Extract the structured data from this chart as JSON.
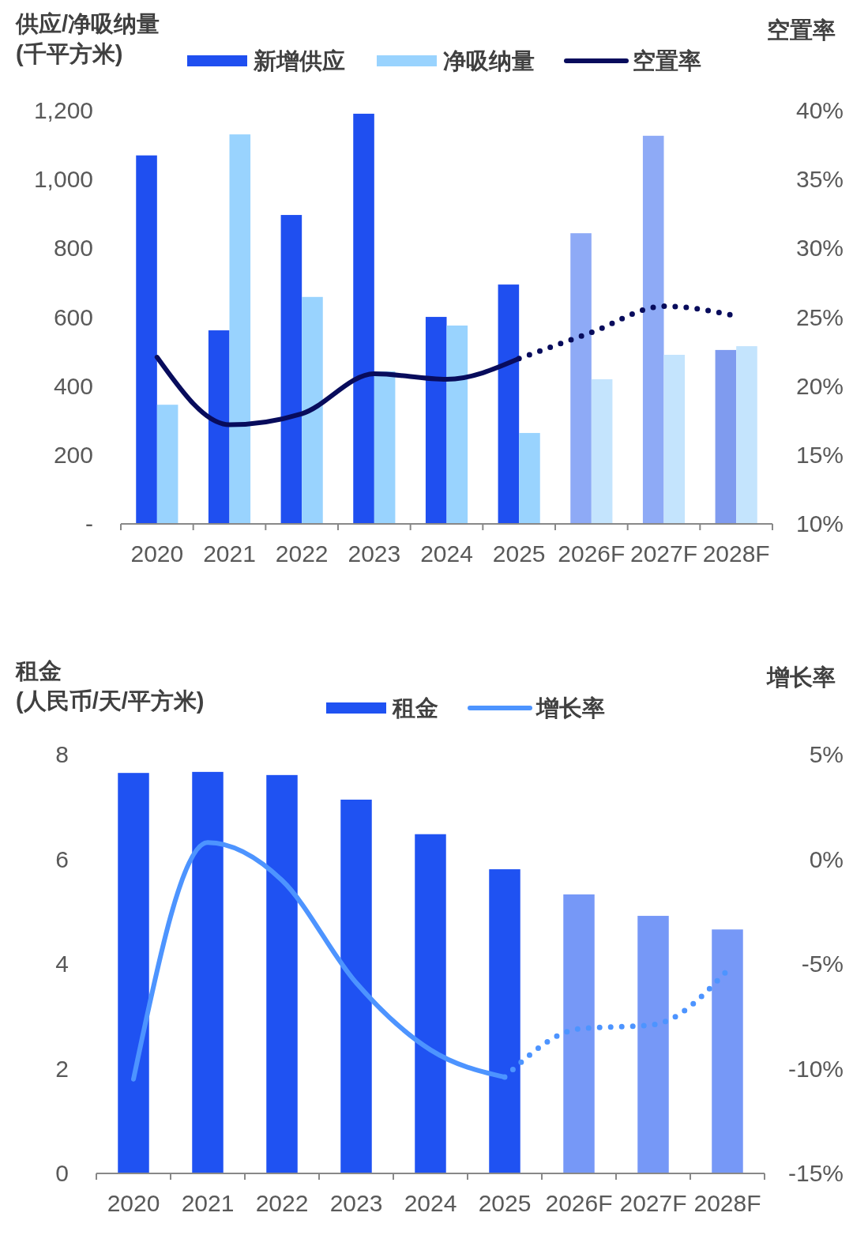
{
  "chart_data": [
    {
      "type": "bar",
      "ylabel": "供应/净吸纳量\n(千平方米)",
      "y2label": "空置率",
      "categories": [
        "2020",
        "2021",
        "2022",
        "2023",
        "2024",
        "2025",
        "2026F",
        "2027F",
        "2028F"
      ],
      "legend": "top",
      "series": [
        {
          "name": "新增供应",
          "color": "#1f4ff0",
          "colors": [
            "#1f4ff0",
            "#1f4ff0",
            "#1f4ff0",
            "#1f4ff0",
            "#1f4ff0",
            "#1f4ff0",
            "#8eaaf6",
            "#8eaaf6",
            "#7f9bef"
          ],
          "values": [
            1070,
            562,
            897,
            1191,
            601,
            695,
            844,
            1127,
            505
          ]
        },
        {
          "name": "净吸纳量",
          "color": "#99d3fe",
          "colors": [
            "#99d3fe",
            "#99d3fe",
            "#99d3fe",
            "#99d3fe",
            "#99d3fe",
            "#99d3fe",
            "#c4e4fd",
            "#c4e4fd",
            "#c4e4fd"
          ],
          "values": [
            346,
            1131,
            659,
            443,
            576,
            264,
            420,
            491,
            516
          ]
        },
        {
          "name": "空置率",
          "type": "line",
          "axis": "y2",
          "color": "#080c5c",
          "line_style": "solid",
          "values": [
            22.1,
            17.2,
            18.0,
            20.9,
            20.5,
            22.0,
            null,
            null,
            null
          ]
        },
        {
          "type": "line",
          "axis": "y2",
          "color": "#080c5c",
          "line_style": "dotted",
          "values": [
            null,
            null,
            null,
            null,
            null,
            22.0,
            23.9,
            25.8,
            25.1
          ]
        }
      ],
      "ylim": [
        0,
        1200
      ],
      "yticks": [
        {
          "value": 0,
          "label": "-"
        },
        {
          "value": 200,
          "label": "200"
        },
        {
          "value": 400,
          "label": "400"
        },
        {
          "value": 600,
          "label": "600"
        },
        {
          "value": 800,
          "label": "800"
        },
        {
          "value": 1000,
          "label": "1,000"
        },
        {
          "value": 1200,
          "label": "1,200"
        }
      ],
      "y2lim": [
        10,
        40
      ],
      "y2ticks": [
        {
          "value": 10,
          "label": "10%"
        },
        {
          "value": 15,
          "label": "15%"
        },
        {
          "value": 20,
          "label": "20%"
        },
        {
          "value": 25,
          "label": "25%"
        },
        {
          "value": 30,
          "label": "30%"
        },
        {
          "value": 35,
          "label": "35%"
        },
        {
          "value": 40,
          "label": "40%"
        }
      ]
    },
    {
      "type": "bar",
      "ylabel": "租金\n(人民币/天/平方米)",
      "y2label": "增长率",
      "categories": [
        "2020",
        "2021",
        "2022",
        "2023",
        "2024",
        "2025",
        "2026F",
        "2027F",
        "2028F"
      ],
      "legend": "top",
      "series": [
        {
          "name": "租金",
          "color": "#1f52f2",
          "colors": [
            "#1f52f2",
            "#1f52f2",
            "#1f52f2",
            "#1f52f2",
            "#1f52f2",
            "#1f52f2",
            "#7698f7",
            "#7698f7",
            "#7698f7"
          ],
          "values": [
            7.65,
            7.67,
            7.61,
            7.14,
            6.48,
            5.81,
            5.33,
            4.92,
            4.66
          ]
        },
        {
          "name": "增长率",
          "type": "line",
          "axis": "y2",
          "color": "#4d94ff",
          "line_style": "solid",
          "values": [
            -10.5,
            0.8,
            -1.0,
            -5.9,
            -9.1,
            -10.4,
            null,
            null,
            null
          ]
        },
        {
          "type": "line",
          "axis": "y2",
          "color": "#4d94ff",
          "line_style": "dotted",
          "values": [
            null,
            null,
            null,
            null,
            null,
            -10.4,
            -8.1,
            -7.9,
            -5.3
          ]
        }
      ],
      "ylim": [
        0,
        8
      ],
      "yticks": [
        0,
        2,
        4,
        6,
        8
      ],
      "y2lim": [
        -15,
        5
      ],
      "y2ticks": [
        {
          "value": -15,
          "label": "-15%"
        },
        {
          "value": -10,
          "label": "-10%"
        },
        {
          "value": -5,
          "label": "-5%"
        },
        {
          "value": 0,
          "label": "0%"
        },
        {
          "value": 5,
          "label": "5%"
        }
      ]
    }
  ]
}
